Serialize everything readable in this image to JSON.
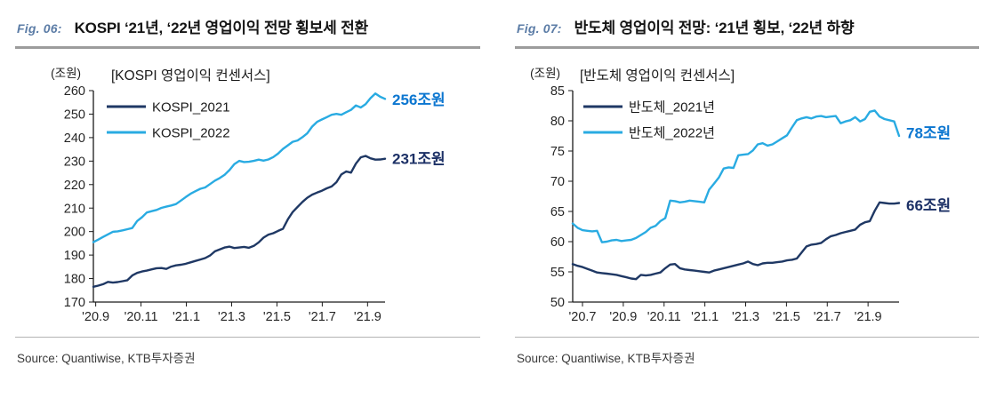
{
  "page": {
    "background": "#ffffff"
  },
  "colors": {
    "navy": "#1F3864",
    "cyan": "#29ABE2",
    "annotation_blue": "#0B76D0",
    "annotation_navy": "#1C3066",
    "fig_label_blue": "#5b7ca6",
    "axis": "#1a1a1a",
    "rule_thick": "#9c9c9c",
    "rule_thin": "#b3b3b3"
  },
  "chart_data": [
    {
      "type": "line",
      "fig_label": "Fig. 06:",
      "fig_title": "KOSPI ‘21년, ‘22년 영업이익 전망 횡보세 전환",
      "unit_label": "(조원)",
      "inner_title": "[KOSPI 영업이익 컨센서스]",
      "source": "Source: Quantiwise, KTB투자증권",
      "grid": false,
      "legend_position": "top-left-inside",
      "ylim": [
        170,
        260
      ],
      "yticks": [
        170,
        180,
        190,
        200,
        210,
        220,
        230,
        240,
        250,
        260
      ],
      "xlabels": [
        "'20.9",
        "'20.11",
        "'21.1",
        "'21.3",
        "'21.5",
        "'21.7",
        "'21.9"
      ],
      "series": [
        {
          "name": "KOSPI_2021",
          "color": "#1F3864",
          "values": [
            176.5,
            177.0,
            177.6,
            178.6,
            178.3,
            178.5,
            178.9,
            179.3,
            181.3,
            182.4,
            183.0,
            183.4,
            183.9,
            184.4,
            184.5,
            184.1,
            185.1,
            185.6,
            185.9,
            186.3,
            186.9,
            187.5,
            188.1,
            188.7,
            189.8,
            191.6,
            192.4,
            193.2,
            193.6,
            193.0,
            193.2,
            193.5,
            193.1,
            193.9,
            195.4,
            197.4,
            198.7,
            199.3,
            200.3,
            201.2,
            205.2,
            208.3,
            210.5,
            212.6,
            214.4,
            215.7,
            216.6,
            217.4,
            218.4,
            219.2,
            221.0,
            224.3,
            225.6,
            225.1,
            228.9,
            231.6,
            232.2,
            231.2,
            230.6,
            230.7,
            231.0
          ]
        },
        {
          "name": "KOSPI_2022",
          "color": "#29ABE2",
          "values": [
            195.5,
            196.6,
            197.7,
            198.8,
            199.9,
            200.1,
            200.5,
            201.0,
            201.5,
            204.5,
            206.1,
            208.1,
            208.7,
            209.2,
            210.1,
            210.6,
            211.1,
            211.7,
            213.2,
            214.7,
            216.1,
            217.2,
            218.2,
            218.8,
            220.2,
            221.7,
            222.8,
            224.2,
            226.2,
            228.7,
            230.1,
            229.6,
            229.7,
            230.1,
            230.6,
            230.2,
            230.7,
            231.7,
            233.2,
            235.2,
            236.7,
            238.2,
            238.8,
            240.2,
            241.8,
            244.7,
            246.7,
            247.7,
            248.7,
            249.7,
            250.1,
            249.7,
            250.8,
            251.8,
            253.7,
            252.8,
            254.2,
            256.8,
            258.8,
            257.4,
            256.5
          ]
        }
      ],
      "annotations": [
        {
          "text": "256조원",
          "value": 256.2,
          "color": "#0B76D0"
        },
        {
          "text": "231조원",
          "value": 231.0,
          "color": "#1C3066"
        }
      ]
    },
    {
      "type": "line",
      "fig_label": "Fig. 07:",
      "fig_title": "반도체 영업이익 전망: ‘21년 횡보, ‘22년 하향",
      "unit_label": "(조원)",
      "inner_title": "[반도체 영업이익 컨센서스]",
      "source": "Source: Quantiwise, KTB투자증권",
      "grid": false,
      "legend_position": "top-left-inside",
      "ylim": [
        50,
        85
      ],
      "yticks": [
        50,
        55,
        60,
        65,
        70,
        75,
        80,
        85
      ],
      "xlabels": [
        "'20.7",
        "'20.9",
        "'20.11",
        "'21.1",
        "'21.3",
        "'21.5",
        "'21.7",
        "'21.9"
      ],
      "series": [
        {
          "name": "반도체_2021년",
          "color": "#1F3864",
          "values": [
            56.3,
            56.0,
            55.8,
            55.5,
            55.2,
            54.9,
            54.8,
            54.7,
            54.6,
            54.5,
            54.3,
            54.1,
            53.9,
            53.8,
            54.5,
            54.4,
            54.5,
            54.7,
            54.9,
            55.6,
            56.2,
            56.3,
            55.6,
            55.4,
            55.3,
            55.2,
            55.1,
            55.0,
            54.9,
            55.2,
            55.4,
            55.6,
            55.8,
            56.0,
            56.2,
            56.4,
            56.7,
            56.3,
            56.1,
            56.4,
            56.5,
            56.5,
            56.6,
            56.7,
            56.9,
            57.0,
            57.2,
            58.2,
            59.2,
            59.5,
            59.6,
            59.8,
            60.4,
            60.9,
            61.1,
            61.4,
            61.6,
            61.8,
            62.0,
            62.8,
            63.2,
            63.4,
            65.1,
            66.5,
            66.4,
            66.3,
            66.3,
            66.4
          ]
        },
        {
          "name": "반도체_2022년",
          "color": "#29ABE2",
          "values": [
            63.0,
            62.3,
            61.9,
            61.8,
            61.7,
            61.8,
            59.9,
            60.0,
            60.2,
            60.3,
            60.1,
            60.2,
            60.3,
            60.6,
            61.1,
            61.6,
            62.3,
            62.6,
            63.4,
            63.9,
            66.8,
            66.7,
            66.5,
            66.6,
            66.8,
            66.7,
            66.6,
            66.5,
            68.6,
            69.6,
            70.6,
            72.1,
            72.3,
            72.2,
            74.3,
            74.4,
            74.5,
            75.1,
            76.1,
            76.3,
            75.9,
            76.1,
            76.6,
            77.1,
            77.6,
            78.9,
            80.1,
            80.4,
            80.6,
            80.4,
            80.7,
            80.8,
            80.6,
            80.7,
            80.8,
            79.6,
            79.9,
            80.1,
            80.6,
            79.9,
            80.3,
            81.5,
            81.7,
            80.7,
            80.3,
            80.1,
            79.9,
            77.5
          ]
        }
      ],
      "annotations": [
        {
          "text": "78조원",
          "value": 78.0,
          "color": "#0B76D0"
        },
        {
          "text": "66조원",
          "value": 66.0,
          "color": "#1C3066"
        }
      ]
    }
  ]
}
